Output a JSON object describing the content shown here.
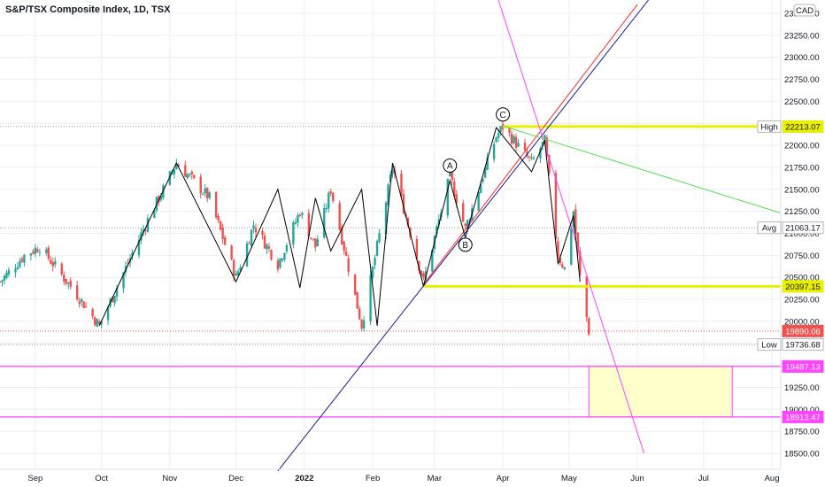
{
  "chart_data": {
    "type": "candlestick",
    "title": "S&P/TSX Composite Index, 1D, TSX",
    "currency": "CAD",
    "y_range": [
      18500,
      23500
    ],
    "y_ticks": [
      18500,
      18750,
      19000,
      19250,
      19500,
      19750,
      20000,
      20250,
      20500,
      20750,
      21000,
      21250,
      21500,
      21750,
      22000,
      22250,
      22500,
      22750,
      23000,
      23250,
      23500
    ],
    "x_range": [
      "2021-08-16",
      "2022-08-05"
    ],
    "x_ticks": [
      {
        "date": "2021-09-01",
        "label": "Sep",
        "bold": false
      },
      {
        "date": "2021-10-01",
        "label": "Oct",
        "bold": false
      },
      {
        "date": "2021-11-01",
        "label": "Nov",
        "bold": false
      },
      {
        "date": "2021-12-01",
        "label": "Dec",
        "bold": false
      },
      {
        "date": "2022-01-01",
        "label": "2022",
        "bold": true
      },
      {
        "date": "2022-02-01",
        "label": "Feb",
        "bold": false
      },
      {
        "date": "2022-03-01",
        "label": "Mar",
        "bold": false
      },
      {
        "date": "2022-04-01",
        "label": "Apr",
        "bold": false
      },
      {
        "date": "2022-05-01",
        "label": "May",
        "bold": false
      },
      {
        "date": "2022-06-01",
        "label": "Jun",
        "bold": false
      },
      {
        "date": "2022-07-01",
        "label": "Jul",
        "bold": false
      },
      {
        "date": "2022-08-01",
        "label": "Aug",
        "bold": false
      }
    ],
    "price_path": [
      [
        "2021-08-16",
        20450
      ],
      [
        "2021-08-27",
        20750
      ],
      [
        "2021-09-03",
        20850
      ],
      [
        "2021-09-20",
        20300
      ],
      [
        "2021-09-30",
        19950
      ],
      [
        "2021-10-21",
        21100
      ],
      [
        "2021-11-04",
        21800
      ],
      [
        "2021-11-19",
        21400
      ],
      [
        "2021-12-01",
        20500
      ],
      [
        "2021-12-09",
        21100
      ],
      [
        "2021-12-20",
        20650
      ],
      [
        "2021-12-30",
        21250
      ],
      [
        "2022-01-06",
        20850
      ],
      [
        "2022-01-13",
        21500
      ],
      [
        "2022-01-27",
        19950
      ],
      [
        "2022-02-10",
        21750
      ],
      [
        "2022-02-24",
        20450
      ],
      [
        "2022-03-08",
        21650
      ],
      [
        "2022-03-15",
        21050
      ],
      [
        "2022-03-29",
        22100
      ],
      [
        "2022-04-01",
        22213
      ],
      [
        "2022-04-14",
        21800
      ],
      [
        "2022-04-20",
        22050
      ],
      [
        "2022-04-26",
        20750
      ],
      [
        "2022-04-29",
        20600
      ],
      [
        "2022-05-03",
        21250
      ],
      [
        "2022-05-06",
        20500
      ],
      [
        "2022-05-10",
        19890
      ]
    ],
    "price_tags": [
      {
        "label": "High",
        "value": "22213.07",
        "y": 22213.07,
        "style": "gray"
      },
      {
        "value": "22213.07",
        "y": 22213.07,
        "style": "yellow"
      },
      {
        "label": "Avg",
        "value": "21063.17",
        "y": 21063.17,
        "style": "gray"
      },
      {
        "value": "20397.15",
        "y": 20397.15,
        "style": "yellow"
      },
      {
        "value": "19890.06",
        "y": 19890.06,
        "style": "red"
      },
      {
        "label": "Low",
        "value": "19736.68",
        "y": 19736.68,
        "style": "gray"
      },
      {
        "value": "19487.13",
        "y": 19487.13,
        "style": "magenta"
      },
      {
        "value": "18913.47",
        "y": 18913.47,
        "style": "magenta"
      }
    ],
    "pivot_labels": [
      {
        "text": "A",
        "date": "2022-03-08",
        "y": 21770
      },
      {
        "text": "B",
        "date": "2022-03-15",
        "y": 20870
      },
      {
        "text": "C",
        "date": "2022-04-01",
        "y": 22350
      }
    ],
    "zigzag": [
      [
        "2021-09-30",
        19950
      ],
      [
        "2021-11-04",
        21800
      ],
      [
        "2021-12-01",
        20450
      ],
      [
        "2021-12-20",
        21500
      ],
      [
        "2021-12-30",
        20380
      ],
      [
        "2022-01-06",
        21400
      ],
      [
        "2022-01-13",
        20800
      ],
      [
        "2022-01-27",
        21500
      ],
      [
        "2022-02-03",
        19950
      ],
      [
        "2022-02-10",
        21800
      ],
      [
        "2022-02-24",
        20400
      ],
      [
        "2022-03-08",
        21600
      ],
      [
        "2022-03-15",
        20950
      ],
      [
        "2022-03-29",
        22200
      ],
      [
        "2022-04-14",
        21700
      ],
      [
        "2022-04-20",
        22050
      ],
      [
        "2022-04-26",
        20650
      ],
      [
        "2022-05-03",
        21200
      ],
      [
        "2022-05-06",
        20450
      ]
    ],
    "trend_lines": [
      {
        "color": "#1a1a8c",
        "from": [
          "2021-12-20",
          18300
        ],
        "to": [
          "2022-06-06",
          23650
        ]
      },
      {
        "color": "#ff2a2a",
        "from": [
          "2022-02-24",
          20420
        ],
        "to": [
          "2022-06-01",
          23600
        ]
      },
      {
        "color": "#ff44ff",
        "from": [
          "2022-03-30",
          23650
        ],
        "to": [
          "2022-06-04",
          18500
        ]
      },
      {
        "color": "#55dd55",
        "from": [
          "2022-04-01",
          22220
        ],
        "to": [
          "2022-08-05",
          21230
        ]
      }
    ],
    "horizontal_levels": [
      {
        "y": 22213.07,
        "color": "#e8f000",
        "from": "2022-04-01",
        "width": 3
      },
      {
        "y": 20397.15,
        "color": "#e8f000",
        "from": "2022-02-24",
        "width": 3
      },
      {
        "y": 19487.13,
        "color": "#ff44ff",
        "from": "2021-08-16",
        "width": 1.2
      },
      {
        "y": 18913.47,
        "color": "#ff44ff",
        "from": "2021-08-16",
        "width": 1.2
      }
    ],
    "target_box": {
      "from": "2022-05-10",
      "to": "2022-07-14",
      "top": 19487.13,
      "bottom": 18913.47
    },
    "colors": {
      "up": "#26a69a",
      "down": "#ef5350",
      "grid": "#eeeeee"
    }
  }
}
